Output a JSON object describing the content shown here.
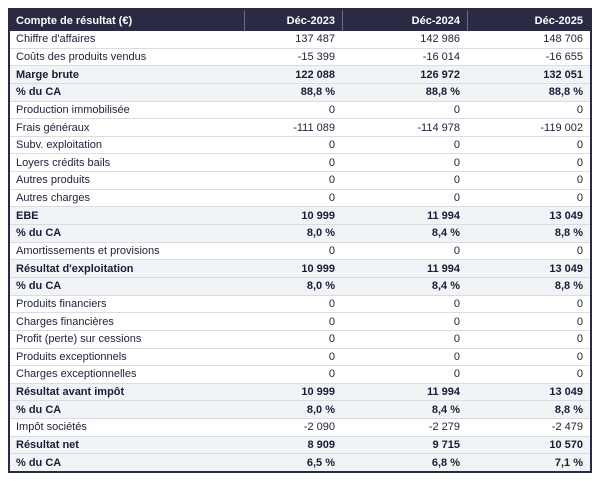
{
  "table": {
    "header": {
      "label": "Compte de résultat (€)",
      "columns": [
        "Déc-2023",
        "Déc-2024",
        "Déc-2025"
      ]
    },
    "rows": [
      {
        "label": "Chiffre d'affaires",
        "values": [
          "137 487",
          "142 986",
          "148 706"
        ],
        "style": "normal"
      },
      {
        "label": "Coûts des produits vendus",
        "values": [
          "-15 399",
          "-16 014",
          "-16 655"
        ],
        "style": "normal"
      },
      {
        "label": "Marge brute",
        "values": [
          "122 088",
          "126 972",
          "132 051"
        ],
        "style": "total"
      },
      {
        "label": "% du CA",
        "values": [
          "88,8 %",
          "88,8 %",
          "88,8 %"
        ],
        "style": "total"
      },
      {
        "label": "Production immobilisée",
        "values": [
          "0",
          "0",
          "0"
        ],
        "style": "normal"
      },
      {
        "label": "Frais généraux",
        "values": [
          "-111 089",
          "-114 978",
          "-119 002"
        ],
        "style": "normal"
      },
      {
        "label": "Subv. exploitation",
        "values": [
          "0",
          "0",
          "0"
        ],
        "style": "normal"
      },
      {
        "label": "Loyers crédits bails",
        "values": [
          "0",
          "0",
          "0"
        ],
        "style": "normal"
      },
      {
        "label": "Autres produits",
        "values": [
          "0",
          "0",
          "0"
        ],
        "style": "normal"
      },
      {
        "label": "Autres charges",
        "values": [
          "0",
          "0",
          "0"
        ],
        "style": "normal"
      },
      {
        "label": "EBE",
        "values": [
          "10 999",
          "11 994",
          "13 049"
        ],
        "style": "total"
      },
      {
        "label": "% du CA",
        "values": [
          "8,0 %",
          "8,4 %",
          "8,8 %"
        ],
        "style": "total"
      },
      {
        "label": "Amortissements et provisions",
        "values": [
          "0",
          "0",
          "0"
        ],
        "style": "normal"
      },
      {
        "label": "Résultat d'exploitation",
        "values": [
          "10 999",
          "11 994",
          "13 049"
        ],
        "style": "total"
      },
      {
        "label": "% du CA",
        "values": [
          "8,0 %",
          "8,4 %",
          "8,8 %"
        ],
        "style": "total"
      },
      {
        "label": "Produits financiers",
        "values": [
          "0",
          "0",
          "0"
        ],
        "style": "normal"
      },
      {
        "label": "Charges financières",
        "values": [
          "0",
          "0",
          "0"
        ],
        "style": "normal"
      },
      {
        "label": "Profit (perte) sur cessions",
        "values": [
          "0",
          "0",
          "0"
        ],
        "style": "normal"
      },
      {
        "label": "Produits exceptionnels",
        "values": [
          "0",
          "0",
          "0"
        ],
        "style": "normal"
      },
      {
        "label": "Charges exceptionnelles",
        "values": [
          "0",
          "0",
          "0"
        ],
        "style": "normal"
      },
      {
        "label": "Résultat avant impôt",
        "values": [
          "10 999",
          "11 994",
          "13 049"
        ],
        "style": "total"
      },
      {
        "label": "% du CA",
        "values": [
          "8,0 %",
          "8,4 %",
          "8,8 %"
        ],
        "style": "total"
      },
      {
        "label": "Impôt sociétés",
        "values": [
          "-2 090",
          "-2 279",
          "-2 479"
        ],
        "style": "normal"
      },
      {
        "label": "Résultat net",
        "values": [
          "8 909",
          "9 715",
          "10 570"
        ],
        "style": "total"
      },
      {
        "label": "% du CA",
        "values": [
          "6,5 %",
          "6,8 %",
          "7,1 %"
        ],
        "style": "total"
      }
    ],
    "colors": {
      "header_bg": "#2a2a44",
      "header_text": "#ffffff",
      "total_row_bg": "#f0f4f6",
      "row_border": "#d9dde0",
      "outer_border": "#2a2a44",
      "body_text": "#22223c"
    }
  }
}
